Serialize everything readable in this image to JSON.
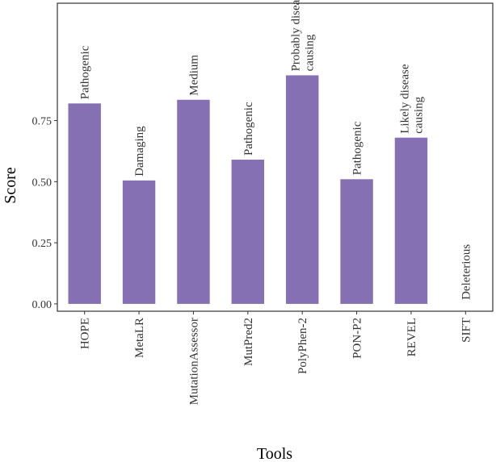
{
  "chart_data": {
    "type": "bar",
    "xlabel": "Tools",
    "ylabel": "Score",
    "ylim": [
      -0.03,
      1.23
    ],
    "yticks": [
      0.0,
      0.25,
      0.5,
      0.75
    ],
    "ytick_labels": [
      "0.00",
      "0.25",
      "0.50",
      "0.75"
    ],
    "grid": false,
    "bar_color": "#8470b2",
    "categories": [
      "HOPE",
      "MetaLR",
      "MutationAssessor",
      "MutPred2",
      "PolyPhen-2",
      "PON-P2",
      "REVEL",
      "SIFT"
    ],
    "values": [
      0.82,
      0.505,
      0.835,
      0.59,
      0.935,
      0.51,
      0.68,
      0.0
    ],
    "bar_labels": [
      [
        "Pathogenic"
      ],
      [
        "Damaging"
      ],
      [
        "Medium"
      ],
      [
        "Pathogenic"
      ],
      [
        "Probably disease",
        "causing"
      ],
      [
        "Pathogenic"
      ],
      [
        "Likely disease",
        "causing"
      ],
      [
        "Deleterious"
      ]
    ]
  }
}
